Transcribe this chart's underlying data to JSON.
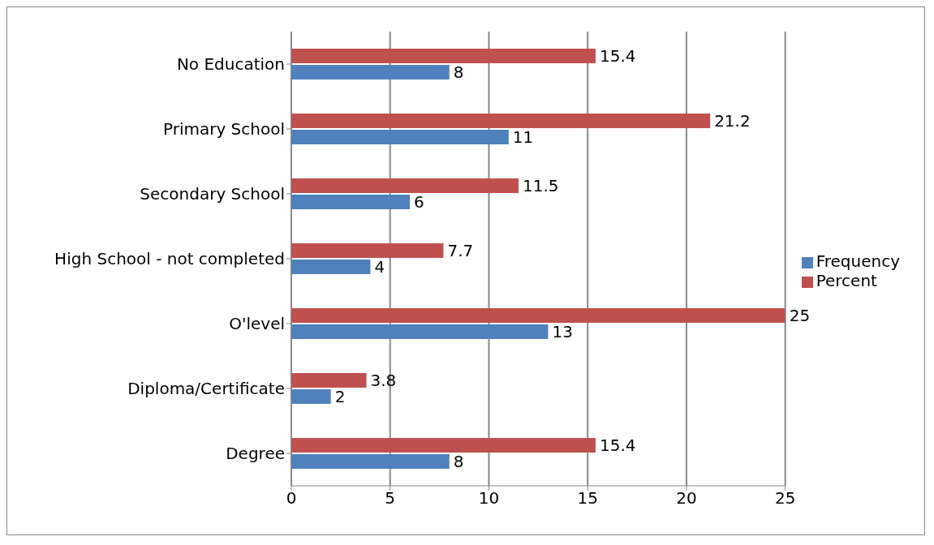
{
  "chart_data": {
    "type": "bar",
    "orientation": "horizontal",
    "categories": [
      "No Education",
      "Primary School",
      "Secondary School",
      "High School - not completed",
      "O'level",
      "Diploma/Certificate",
      "Degree"
    ],
    "series": [
      {
        "name": "Percent",
        "color": "#c0504d",
        "values": [
          15.4,
          21.2,
          11.5,
          7.7,
          25,
          3.8,
          15.4
        ]
      },
      {
        "name": "Frequency",
        "color": "#4f81bd",
        "values": [
          8,
          11,
          6,
          4,
          13,
          2,
          8
        ]
      }
    ],
    "xlim": [
      0,
      25
    ],
    "xticks": [
      0,
      5,
      10,
      15,
      20,
      25
    ],
    "grid": "x",
    "legend": "right",
    "data_labels": true
  }
}
